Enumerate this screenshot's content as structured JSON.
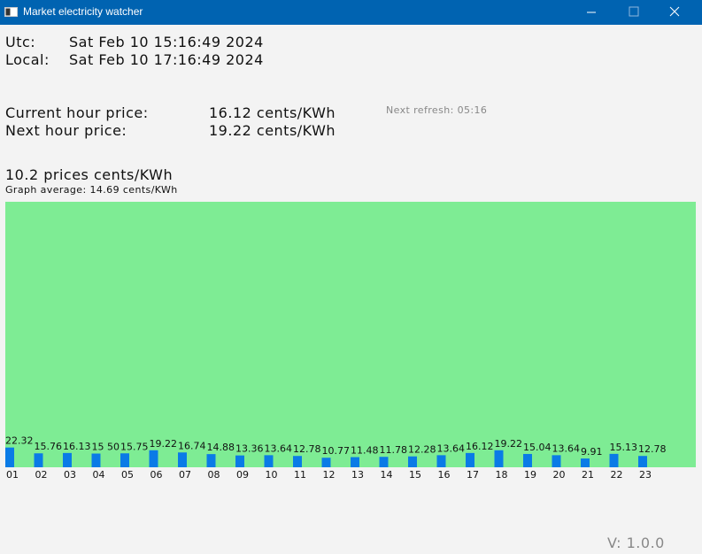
{
  "window": {
    "title": "Market electricity watcher"
  },
  "time": {
    "utc_label": "Utc:",
    "utc": "Sat Feb 10 15:16:49 2024",
    "local_label": "Local:",
    "local": "Sat Feb 10 17:16:49 2024"
  },
  "prices": {
    "current_label": "Current hour price:",
    "current": "16.12 cents/KWh",
    "next_label": "Next hour price:",
    "next": "19.22 cents/KWh"
  },
  "next_refresh": "Next refresh: 05:16",
  "chart_data": {
    "type": "bar",
    "title": "10.2 prices cents/KWh",
    "subtitle": "Graph average: 14.69 cents/KWh",
    "categories": [
      "01",
      "02",
      "03",
      "04",
      "05",
      "06",
      "07",
      "08",
      "09",
      "10",
      "11",
      "12",
      "13",
      "14",
      "15",
      "16",
      "17",
      "18",
      "19",
      "20",
      "21",
      "22",
      "23"
    ],
    "values": [
      22.32,
      15.76,
      16.13,
      15.5,
      15.75,
      19.22,
      16.74,
      14.88,
      13.36,
      13.64,
      12.78,
      10.77,
      11.48,
      11.78,
      12.28,
      13.64,
      16.12,
      19.22,
      15.04,
      13.64,
      9.91,
      15.13,
      12.78
    ],
    "value_labels": [
      "22.32",
      "15.76",
      "16.13",
      "15 50",
      "15.75",
      "19.22",
      "16.74",
      "14.88",
      "13.36",
      "13.64",
      "12.78",
      "10.77",
      "11.48",
      "11.78",
      "12.28",
      "13.64",
      "16.12",
      "19.22",
      "15.04",
      "13.64",
      "9.91",
      "15.13",
      "12.78"
    ],
    "color": "#0a7be6",
    "background": "#7eec94",
    "ylim": [
      0,
      300
    ]
  },
  "version": "V: 1.0.0"
}
